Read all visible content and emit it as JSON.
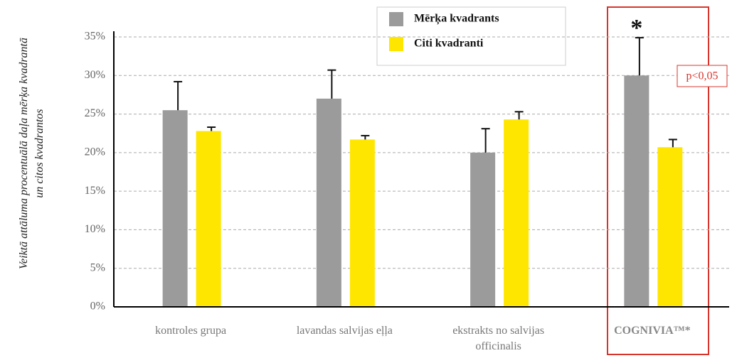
{
  "chart_data": {
    "type": "bar",
    "ylabel": "Veiktā attāluma procentuālā daļa mērķa kvadrantā un citos kvadrantos",
    "categories": [
      "kontroles grupa",
      "lavandas salvijas eļļa",
      "ekstrakts no salvijas officinalis",
      "COGNIVIA™*"
    ],
    "series": [
      {
        "name": "Mērķa kvadrants",
        "color": "#9b9b9b",
        "values": [
          25.5,
          27,
          20,
          30
        ],
        "errors": [
          3.7,
          3.7,
          3.1,
          4.9
        ]
      },
      {
        "name": "Citi kvadranti",
        "color": "#ffe600",
        "values": [
          22.8,
          21.7,
          24.3,
          20.7
        ],
        "errors": [
          0.5,
          0.5,
          1.0,
          1.0
        ]
      }
    ],
    "ylim": [
      0,
      35
    ],
    "yticks": [
      {
        "value": 0,
        "label": "0%"
      },
      {
        "value": 5,
        "label": "5%"
      },
      {
        "value": 10,
        "label": "10%"
      },
      {
        "value": 15,
        "label": "15%"
      },
      {
        "value": 20,
        "label": "20%"
      },
      {
        "value": 25,
        "label": "25%"
      },
      {
        "value": 30,
        "label": "30%"
      },
      {
        "value": 35,
        "label": "35%"
      }
    ],
    "grid": true,
    "annotations": [
      "*",
      "p<0,05"
    ]
  }
}
